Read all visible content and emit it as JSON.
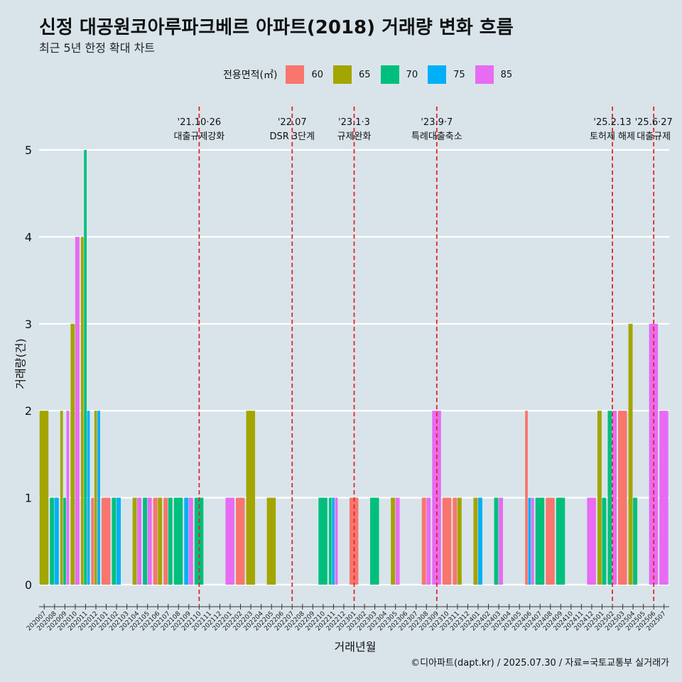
{
  "title": "신정 대공원코아루파크베르 아파트(2018) 거래량 변화 흐름",
  "subtitle": "최근 5년 한정 확대 차트",
  "caption": "©디아파트(dapt.kr) / 2025.07.30 / 자료=국토교통부 실거래가",
  "legend": {
    "title": "전용면적(㎡)",
    "items": [
      {
        "label": "60",
        "color": "#F8766D"
      },
      {
        "label": "65",
        "color": "#A3A500"
      },
      {
        "label": "70",
        "color": "#00BF7D"
      },
      {
        "label": "75",
        "color": "#00B0F6"
      },
      {
        "label": "85",
        "color": "#E76BF3"
      }
    ]
  },
  "chart_data": {
    "type": "bar",
    "xlabel": "거래년월",
    "ylabel": "거래량(건)",
    "ylim": [
      0,
      5
    ],
    "yticks": [
      0,
      1,
      2,
      3,
      4,
      5
    ],
    "series_names": [
      "60",
      "65",
      "70",
      "75",
      "85"
    ],
    "categories": [
      "202007",
      "202008",
      "202009",
      "202010",
      "202011",
      "202012",
      "202101",
      "202102",
      "202103",
      "202104",
      "202105",
      "202106",
      "202107",
      "202108",
      "202109",
      "202110",
      "202111",
      "202112",
      "202201",
      "202202",
      "202203",
      "202204",
      "202205",
      "202206",
      "202207",
      "202208",
      "202209",
      "202210",
      "202211",
      "202212",
      "202301",
      "202302",
      "202303",
      "202304",
      "202305",
      "202306",
      "202307",
      "202308",
      "202309",
      "202310",
      "202311",
      "202312",
      "202401",
      "202402",
      "202403",
      "202404",
      "202405",
      "202406",
      "202407",
      "202408",
      "202409",
      "202410",
      "202411",
      "202412",
      "202501",
      "202502",
      "202503",
      "202504",
      "202505",
      "202506",
      "202507"
    ],
    "values": [
      [
        0,
        2,
        0,
        0,
        0
      ],
      [
        0,
        0,
        1,
        1,
        0
      ],
      [
        0,
        2,
        1,
        0,
        2
      ],
      [
        0,
        3,
        0,
        0,
        4
      ],
      [
        0,
        4,
        5,
        2,
        0
      ],
      [
        1,
        2,
        0,
        2,
        0
      ],
      [
        1,
        0,
        0,
        0,
        0
      ],
      [
        0,
        0,
        1,
        1,
        0
      ],
      [
        0,
        0,
        0,
        0,
        0
      ],
      [
        0,
        1,
        0,
        0,
        1
      ],
      [
        0,
        0,
        1,
        0,
        1
      ],
      [
        1,
        1,
        0,
        0,
        0
      ],
      [
        1,
        0,
        1,
        0,
        0
      ],
      [
        0,
        0,
        1,
        0,
        0
      ],
      [
        0,
        0,
        0,
        1,
        1
      ],
      [
        0,
        0,
        1,
        0,
        0
      ],
      [
        0,
        0,
        0,
        0,
        0
      ],
      [
        0,
        0,
        0,
        0,
        0
      ],
      [
        0,
        0,
        0,
        0,
        1
      ],
      [
        1,
        0,
        0,
        0,
        0
      ],
      [
        0,
        2,
        0,
        0,
        0
      ],
      [
        0,
        0,
        0,
        0,
        0
      ],
      [
        0,
        1,
        0,
        0,
        0
      ],
      [
        0,
        0,
        0,
        0,
        0
      ],
      [
        0,
        0,
        0,
        0,
        0
      ],
      [
        0,
        0,
        0,
        0,
        0
      ],
      [
        0,
        0,
        0,
        0,
        0
      ],
      [
        0,
        0,
        1,
        0,
        0
      ],
      [
        0,
        0,
        1,
        1,
        1
      ],
      [
        0,
        0,
        0,
        0,
        0
      ],
      [
        1,
        0,
        0,
        0,
        0
      ],
      [
        0,
        0,
        0,
        0,
        0
      ],
      [
        0,
        0,
        1,
        0,
        0
      ],
      [
        0,
        0,
        0,
        0,
        0
      ],
      [
        0,
        1,
        0,
        0,
        1
      ],
      [
        0,
        0,
        0,
        0,
        0
      ],
      [
        0,
        0,
        0,
        0,
        0
      ],
      [
        1,
        0,
        0,
        0,
        1
      ],
      [
        0,
        0,
        0,
        0,
        2
      ],
      [
        1,
        0,
        0,
        0,
        0
      ],
      [
        1,
        1,
        0,
        0,
        0
      ],
      [
        0,
        0,
        0,
        0,
        0
      ],
      [
        0,
        1,
        0,
        1,
        0
      ],
      [
        0,
        0,
        0,
        0,
        0
      ],
      [
        0,
        0,
        1,
        0,
        1
      ],
      [
        0,
        0,
        0,
        0,
        0
      ],
      [
        0,
        0,
        0,
        0,
        0
      ],
      [
        2,
        0,
        0,
        1,
        1
      ],
      [
        0,
        0,
        1,
        0,
        0
      ],
      [
        1,
        0,
        0,
        0,
        0
      ],
      [
        0,
        0,
        1,
        0,
        0
      ],
      [
        0,
        0,
        0,
        0,
        0
      ],
      [
        0,
        0,
        0,
        0,
        0
      ],
      [
        0,
        0,
        0,
        0,
        1
      ],
      [
        0,
        2,
        1,
        0,
        0
      ],
      [
        0,
        0,
        2,
        0,
        2
      ],
      [
        2,
        0,
        0,
        0,
        0
      ],
      [
        0,
        3,
        1,
        0,
        0
      ],
      [
        0,
        0,
        0,
        0,
        0
      ],
      [
        0,
        0,
        0,
        0,
        3
      ],
      [
        0,
        0,
        0,
        0,
        2
      ]
    ],
    "annotations": [
      {
        "month": "202110",
        "date": "'21.10·26",
        "text": "대출규제강화"
      },
      {
        "month": "202207",
        "date": "'22.07",
        "text": "DSR 3단계"
      },
      {
        "month": "202301",
        "date": "'23.1·3",
        "text": "규제완화"
      },
      {
        "month": "202309",
        "date": "'23.9·7",
        "text": "특례대출축소"
      },
      {
        "month": "202502",
        "date": "'25.2.13",
        "text": "토허제 해제"
      },
      {
        "month": "202506",
        "date": "'25.6·27",
        "text": "대출규제"
      }
    ]
  }
}
